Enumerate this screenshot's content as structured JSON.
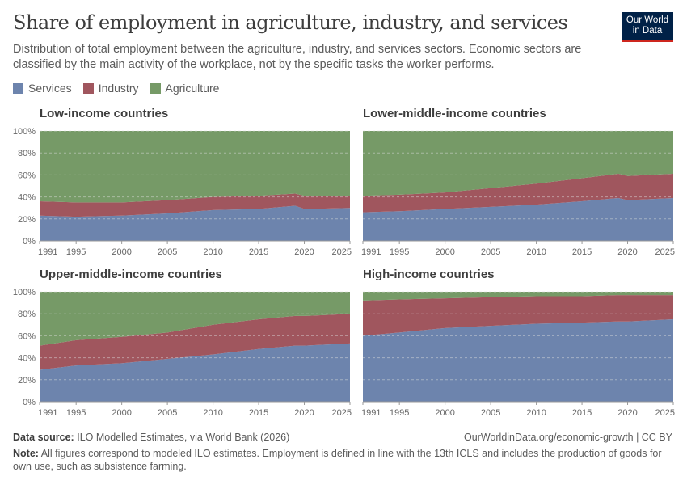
{
  "header": {
    "title": "Share of employment in agriculture, industry, and services",
    "subtitle": "Distribution of total employment between the agriculture, industry, and services sectors. Economic sectors are classified by the main activity of the workplace, not by the specific tasks the worker performs.",
    "logo": "Our World in Data"
  },
  "legend": [
    {
      "label": "Services",
      "color": "#6d84ad"
    },
    {
      "label": "Industry",
      "color": "#a0565e"
    },
    {
      "label": "Agriculture",
      "color": "#769a67"
    }
  ],
  "footer": {
    "source_label": "Data source:",
    "source": "ILO Modelled Estimates, via World Bank (2026)",
    "url": "OurWorldinData.org/economic-growth | CC BY",
    "note_label": "Note:",
    "note": "All figures correspond to modeled ILO estimates. Employment is defined in line with the 13th ICLS and includes the production of goods for own use, such as subsistence farming."
  },
  "chart_data": [
    {
      "type": "area",
      "stacked": true,
      "title": "Low-income countries",
      "x": [
        1991,
        1995,
        2000,
        2005,
        2010,
        2015,
        2019,
        2020,
        2025
      ],
      "series": [
        {
          "name": "Services",
          "values": [
            23,
            22,
            23,
            25,
            28,
            29,
            32,
            29,
            30
          ]
        },
        {
          "name": "Industry",
          "values": [
            13,
            13,
            12,
            12,
            12,
            12,
            11,
            12,
            11
          ]
        },
        {
          "name": "Agriculture",
          "values": [
            64,
            65,
            65,
            63,
            60,
            59,
            57,
            59,
            59
          ]
        }
      ],
      "ylim": [
        0,
        100
      ],
      "yticks": [
        "0%",
        "20%",
        "40%",
        "60%",
        "80%",
        "100%"
      ],
      "xticks": [
        "1991",
        "1995",
        "2000",
        "2005",
        "2010",
        "2015",
        "2020",
        "2025"
      ],
      "grid": true
    },
    {
      "type": "area",
      "stacked": true,
      "title": "Lower-middle-income countries",
      "x": [
        1991,
        1995,
        2000,
        2005,
        2010,
        2015,
        2019,
        2020,
        2025
      ],
      "series": [
        {
          "name": "Services",
          "values": [
            26,
            27,
            29,
            31,
            33,
            36,
            39,
            37,
            39
          ]
        },
        {
          "name": "Industry",
          "values": [
            15,
            15,
            15,
            17,
            19,
            21,
            22,
            22,
            22
          ]
        },
        {
          "name": "Agriculture",
          "values": [
            59,
            58,
            56,
            52,
            48,
            43,
            39,
            41,
            39
          ]
        }
      ],
      "ylim": [
        0,
        100
      ],
      "yticks": [
        "0%",
        "20%",
        "40%",
        "60%",
        "80%",
        "100%"
      ],
      "xticks": [
        "1991",
        "1995",
        "2000",
        "2005",
        "2010",
        "2015",
        "2020",
        "2025"
      ],
      "grid": true
    },
    {
      "type": "area",
      "stacked": true,
      "title": "Upper-middle-income countries",
      "x": [
        1991,
        1995,
        2000,
        2005,
        2010,
        2015,
        2019,
        2020,
        2025
      ],
      "series": [
        {
          "name": "Services",
          "values": [
            29,
            33,
            35,
            39,
            43,
            48,
            51,
            51,
            53
          ]
        },
        {
          "name": "Industry",
          "values": [
            22,
            23,
            24,
            24,
            27,
            27,
            27,
            27,
            27
          ]
        },
        {
          "name": "Agriculture",
          "values": [
            49,
            44,
            41,
            37,
            30,
            25,
            22,
            22,
            20
          ]
        }
      ],
      "ylim": [
        0,
        100
      ],
      "yticks": [
        "0%",
        "20%",
        "40%",
        "60%",
        "80%",
        "100%"
      ],
      "xticks": [
        "1991",
        "1995",
        "2000",
        "2005",
        "2010",
        "2015",
        "2020",
        "2025"
      ],
      "grid": true
    },
    {
      "type": "area",
      "stacked": true,
      "title": "High-income countries",
      "x": [
        1991,
        1995,
        2000,
        2005,
        2010,
        2015,
        2019,
        2020,
        2025
      ],
      "series": [
        {
          "name": "Services",
          "values": [
            60,
            63,
            67,
            69,
            71,
            72,
            73,
            73,
            75
          ]
        },
        {
          "name": "Industry",
          "values": [
            32,
            30,
            27,
            26,
            25,
            24,
            24,
            24,
            22
          ]
        },
        {
          "name": "Agriculture",
          "values": [
            8,
            7,
            6,
            5,
            4,
            4,
            3,
            3,
            3
          ]
        }
      ],
      "ylim": [
        0,
        100
      ],
      "yticks": [
        "0%",
        "20%",
        "40%",
        "60%",
        "80%",
        "100%"
      ],
      "xticks": [
        "1991",
        "1995",
        "2000",
        "2005",
        "2010",
        "2015",
        "2020",
        "2025"
      ],
      "grid": true
    }
  ]
}
